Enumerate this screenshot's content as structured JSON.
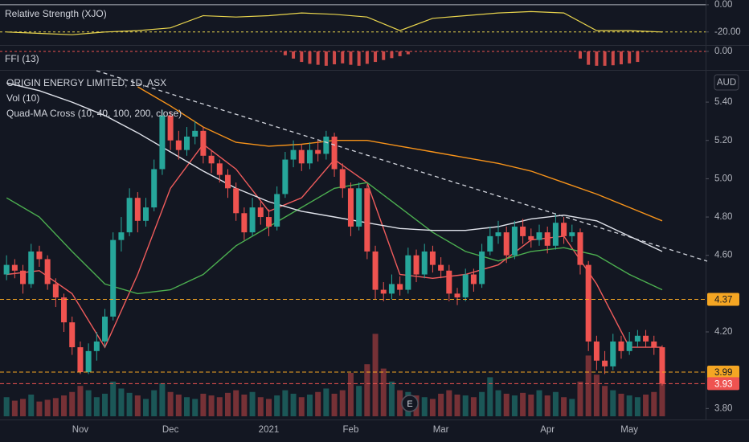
{
  "chart_data": [
    {
      "type": "line",
      "title": "Relative Strength (XJO)",
      "xlim": [
        -0.8,
        85.3
      ],
      "ylim": [
        -29,
        3.5
      ],
      "yticks": [
        {
          "value": 0,
          "label": "0.00"
        },
        {
          "value": -20,
          "label": "-20.00"
        }
      ],
      "reference_lines": [
        {
          "value": 0,
          "color": "#b2b5be",
          "dash": false
        },
        {
          "value": -20,
          "color": "#e8d44d",
          "dash": true
        }
      ],
      "color": "#e8d44d",
      "x": [
        0,
        4,
        8,
        12,
        16,
        20,
        24,
        28,
        32,
        36,
        40,
        44,
        48,
        52,
        56,
        60,
        64,
        68,
        72,
        76,
        80
      ],
      "values": [
        -20,
        -21,
        -22,
        -20,
        -19,
        -17,
        -8,
        -9,
        -8,
        -6,
        -7,
        -9,
        -19,
        -10,
        -8,
        -6,
        -5,
        -6,
        -19,
        -19,
        -20
      ]
    },
    {
      "type": "bar",
      "title": "FFI (13)",
      "xlim": [
        -0.8,
        85.3
      ],
      "ylim": [
        -3.7,
        1
      ],
      "yticks": [
        {
          "value": 0,
          "label": "0.00"
        }
      ],
      "reference_lines": [
        {
          "value": 0,
          "color": "#ef5350",
          "dash": true
        }
      ],
      "color": "#ef5350",
      "x": [
        34,
        35,
        36,
        37,
        38,
        39,
        40,
        41,
        42,
        43,
        44,
        45,
        46,
        47,
        48,
        49,
        70,
        71,
        72,
        73,
        74,
        75,
        76,
        77
      ],
      "values": [
        -0.8,
        -1.5,
        -2.2,
        -2.6,
        -2.8,
        -3.0,
        -2.7,
        -2.5,
        -2.8,
        -3.0,
        -2.6,
        -2.2,
        -1.8,
        -1.4,
        -1.0,
        -0.6,
        -1.5,
        -2.8,
        -3.0,
        -3.0,
        -2.9,
        -2.7,
        -2.5,
        -2.2
      ]
    },
    {
      "type": "candlestick",
      "title": "ORIGIN ENERGY LIMITED, 1D, ASX",
      "volume_label": "Vol (10)",
      "ma_label": "Quad-MA Cross (10, 40, 100, 200, close)",
      "currency": "AUD",
      "event_label": "E",
      "xlim": [
        -0.8,
        85.3
      ],
      "ylim": [
        3.751,
        5.564
      ],
      "grid": false,
      "yticks": [
        {
          "value": 5.4,
          "label": "5.40"
        },
        {
          "value": 5.2,
          "label": "5.20"
        },
        {
          "value": 5.0,
          "label": "5.00"
        },
        {
          "value": 4.8,
          "label": "4.80"
        },
        {
          "value": 4.6,
          "label": "4.60"
        },
        {
          "value": 4.2,
          "label": "4.20"
        },
        {
          "value": 3.8,
          "label": "3.80"
        }
      ],
      "up_color": "#26a69a",
      "down_color": "#ef5350",
      "categories": [
        null,
        null,
        null,
        null,
        null,
        null,
        null,
        null,
        null,
        "Nov",
        null,
        null,
        null,
        null,
        null,
        null,
        null,
        null,
        null,
        null,
        "Dec",
        null,
        null,
        null,
        null,
        null,
        null,
        null,
        null,
        null,
        null,
        null,
        "2021",
        null,
        null,
        null,
        null,
        null,
        null,
        null,
        null,
        null,
        "Feb",
        null,
        null,
        null,
        null,
        null,
        null,
        null,
        null,
        null,
        null,
        "Mar",
        null,
        null,
        null,
        null,
        null,
        null,
        null,
        null,
        null,
        null,
        null,
        null,
        "Apr",
        null,
        null,
        null,
        null,
        null,
        null,
        null,
        null,
        null,
        "May",
        null,
        null,
        null,
        null
      ],
      "open": [
        4.5,
        4.55,
        4.52,
        4.45,
        4.62,
        4.58,
        4.45,
        4.38,
        4.25,
        4.12,
        3.99,
        4.1,
        4.15,
        4.28,
        4.68,
        4.72,
        4.9,
        4.78,
        4.85,
        5.05,
        5.33,
        5.2,
        5.15,
        5.22,
        5.25,
        5.12,
        5.08,
        5.02,
        4.95,
        4.82,
        4.72,
        4.85,
        4.8,
        4.75,
        4.92,
        5.1,
        5.15,
        5.08,
        5.15,
        5.13,
        5.22,
        5.05,
        4.95,
        4.75,
        4.95,
        4.62,
        4.42,
        4.4,
        4.45,
        4.42,
        4.6,
        4.5,
        4.62,
        4.55,
        4.52,
        4.4,
        4.38,
        4.5,
        4.45,
        4.62,
        4.7,
        4.72,
        4.6,
        4.75,
        4.7,
        4.68,
        4.72,
        4.65,
        4.77,
        4.7,
        4.72,
        4.55,
        4.15,
        4.05,
        4.02,
        4.15,
        4.1,
        4.15,
        4.18,
        4.15,
        4.12
      ],
      "high": [
        4.6,
        4.58,
        4.55,
        4.66,
        4.65,
        4.6,
        4.48,
        4.4,
        4.28,
        4.15,
        4.14,
        4.2,
        4.32,
        4.72,
        4.8,
        4.95,
        4.93,
        4.9,
        5.1,
        5.36,
        5.35,
        5.25,
        5.27,
        5.3,
        5.27,
        5.15,
        5.1,
        5.05,
        4.98,
        4.85,
        4.9,
        4.88,
        4.84,
        4.96,
        5.14,
        5.2,
        5.18,
        5.19,
        5.2,
        5.25,
        5.24,
        5.08,
        4.98,
        4.98,
        4.97,
        4.65,
        4.46,
        4.5,
        4.49,
        4.64,
        4.63,
        4.66,
        4.65,
        4.59,
        4.55,
        4.43,
        4.53,
        4.53,
        4.66,
        4.75,
        4.78,
        4.75,
        4.78,
        4.79,
        4.74,
        4.76,
        4.75,
        4.82,
        4.8,
        4.76,
        4.74,
        4.57,
        4.18,
        4.1,
        4.19,
        4.18,
        4.2,
        4.21,
        4.21,
        4.18,
        4.13
      ],
      "low": [
        4.47,
        4.48,
        4.4,
        4.43,
        4.54,
        4.42,
        4.33,
        4.2,
        4.08,
        3.98,
        3.98,
        4.05,
        4.12,
        4.26,
        4.62,
        4.7,
        4.72,
        4.75,
        4.83,
        5.02,
        5.15,
        5.1,
        5.12,
        5.18,
        5.08,
        5.03,
        4.98,
        4.9,
        4.78,
        4.68,
        4.7,
        4.76,
        4.7,
        4.73,
        4.9,
        5.06,
        5.04,
        5.05,
        5.09,
        5.1,
        5.01,
        4.9,
        4.7,
        4.73,
        4.58,
        4.37,
        4.36,
        4.37,
        4.39,
        4.4,
        4.46,
        4.48,
        4.51,
        4.48,
        4.36,
        4.34,
        4.36,
        4.41,
        4.43,
        4.6,
        4.66,
        4.56,
        4.58,
        4.66,
        4.64,
        4.65,
        4.61,
        4.63,
        4.66,
        4.67,
        4.5,
        4.1,
        4.0,
        3.98,
        4.0,
        4.06,
        4.08,
        4.12,
        4.12,
        4.08,
        3.92
      ],
      "close": [
        4.55,
        4.52,
        4.45,
        4.62,
        4.58,
        4.45,
        4.38,
        4.25,
        4.12,
        3.99,
        4.1,
        4.15,
        4.28,
        4.68,
        4.72,
        4.9,
        4.78,
        4.85,
        5.05,
        5.33,
        5.2,
        5.15,
        5.22,
        5.25,
        5.12,
        5.08,
        5.02,
        4.95,
        4.82,
        4.72,
        4.85,
        4.8,
        4.75,
        4.92,
        5.1,
        5.15,
        5.08,
        5.15,
        5.13,
        5.22,
        5.05,
        4.95,
        4.75,
        4.95,
        4.62,
        4.42,
        4.4,
        4.45,
        4.42,
        4.6,
        4.5,
        4.62,
        4.55,
        4.52,
        4.4,
        4.38,
        4.5,
        4.45,
        4.62,
        4.7,
        4.72,
        4.6,
        4.75,
        4.7,
        4.68,
        4.72,
        4.65,
        4.77,
        4.7,
        4.72,
        4.55,
        4.15,
        4.05,
        4.02,
        4.15,
        4.1,
        4.15,
        4.18,
        4.15,
        4.12,
        3.93
      ],
      "volume_lim": [
        0,
        100
      ],
      "volume": [
        22,
        18,
        20,
        25,
        17,
        19,
        21,
        24,
        28,
        35,
        30,
        22,
        26,
        40,
        32,
        27,
        24,
        20,
        30,
        38,
        28,
        25,
        22,
        20,
        26,
        24,
        22,
        27,
        30,
        25,
        28,
        22,
        20,
        24,
        30,
        26,
        22,
        25,
        28,
        32,
        26,
        30,
        50,
        35,
        60,
        95,
        55,
        40,
        30,
        28,
        24,
        22,
        20,
        26,
        30,
        25,
        24,
        22,
        28,
        45,
        30,
        26,
        24,
        27,
        25,
        30,
        24,
        28,
        22,
        20,
        40,
        70,
        48,
        35,
        30,
        26,
        24,
        22,
        25,
        28,
        50
      ],
      "series": [
        {
          "color": "#f05c5c",
          "x": [
            0,
            4,
            8,
            12,
            16,
            20,
            24,
            28,
            32,
            36,
            40,
            44,
            48,
            52,
            56,
            60,
            64,
            68,
            72,
            76,
            80
          ],
          "values": [
            4.5,
            4.52,
            4.4,
            4.12,
            4.5,
            4.95,
            5.18,
            5.05,
            4.83,
            4.9,
            5.1,
            4.98,
            4.5,
            4.48,
            4.5,
            4.55,
            4.68,
            4.7,
            4.45,
            4.12,
            4.12
          ]
        },
        {
          "color": "#4caf50",
          "x": [
            0,
            4,
            8,
            12,
            16,
            20,
            24,
            28,
            32,
            36,
            40,
            44,
            48,
            52,
            56,
            60,
            64,
            68,
            72,
            76,
            80
          ],
          "values": [
            4.9,
            4.8,
            4.62,
            4.45,
            4.4,
            4.42,
            4.5,
            4.65,
            4.75,
            4.85,
            4.95,
            4.98,
            4.85,
            4.72,
            4.62,
            4.57,
            4.62,
            4.64,
            4.6,
            4.5,
            4.42
          ]
        },
        {
          "color": "#e0e3eb",
          "x": [
            0,
            4,
            8,
            12,
            16,
            20,
            24,
            28,
            32,
            36,
            40,
            44,
            48,
            52,
            56,
            60,
            64,
            68,
            72,
            76,
            80
          ],
          "values": [
            5.5,
            5.46,
            5.4,
            5.33,
            5.24,
            5.14,
            5.04,
            4.95,
            4.88,
            4.83,
            4.8,
            4.77,
            4.74,
            4.73,
            4.73,
            4.75,
            4.79,
            4.81,
            4.78,
            4.7,
            4.62
          ]
        },
        {
          "color": "#f7931a",
          "x": [
            16,
            20,
            24,
            28,
            32,
            36,
            40,
            44,
            48,
            52,
            56,
            60,
            64,
            68,
            72,
            76,
            80
          ],
          "values": [
            5.48,
            5.38,
            5.27,
            5.19,
            5.17,
            5.18,
            5.2,
            5.2,
            5.17,
            5.14,
            5.11,
            5.08,
            5.04,
            4.98,
            4.92,
            4.85,
            4.78
          ]
        }
      ],
      "price_lines": [
        {
          "value": 4.37,
          "color": "#f5a623",
          "text_color": "#131722"
        },
        {
          "value": 3.99,
          "color": "#f5a623",
          "text_color": "#131722"
        },
        {
          "value": 3.93,
          "color": "#ef5350",
          "text_color": "#ffffff"
        }
      ]
    }
  ]
}
